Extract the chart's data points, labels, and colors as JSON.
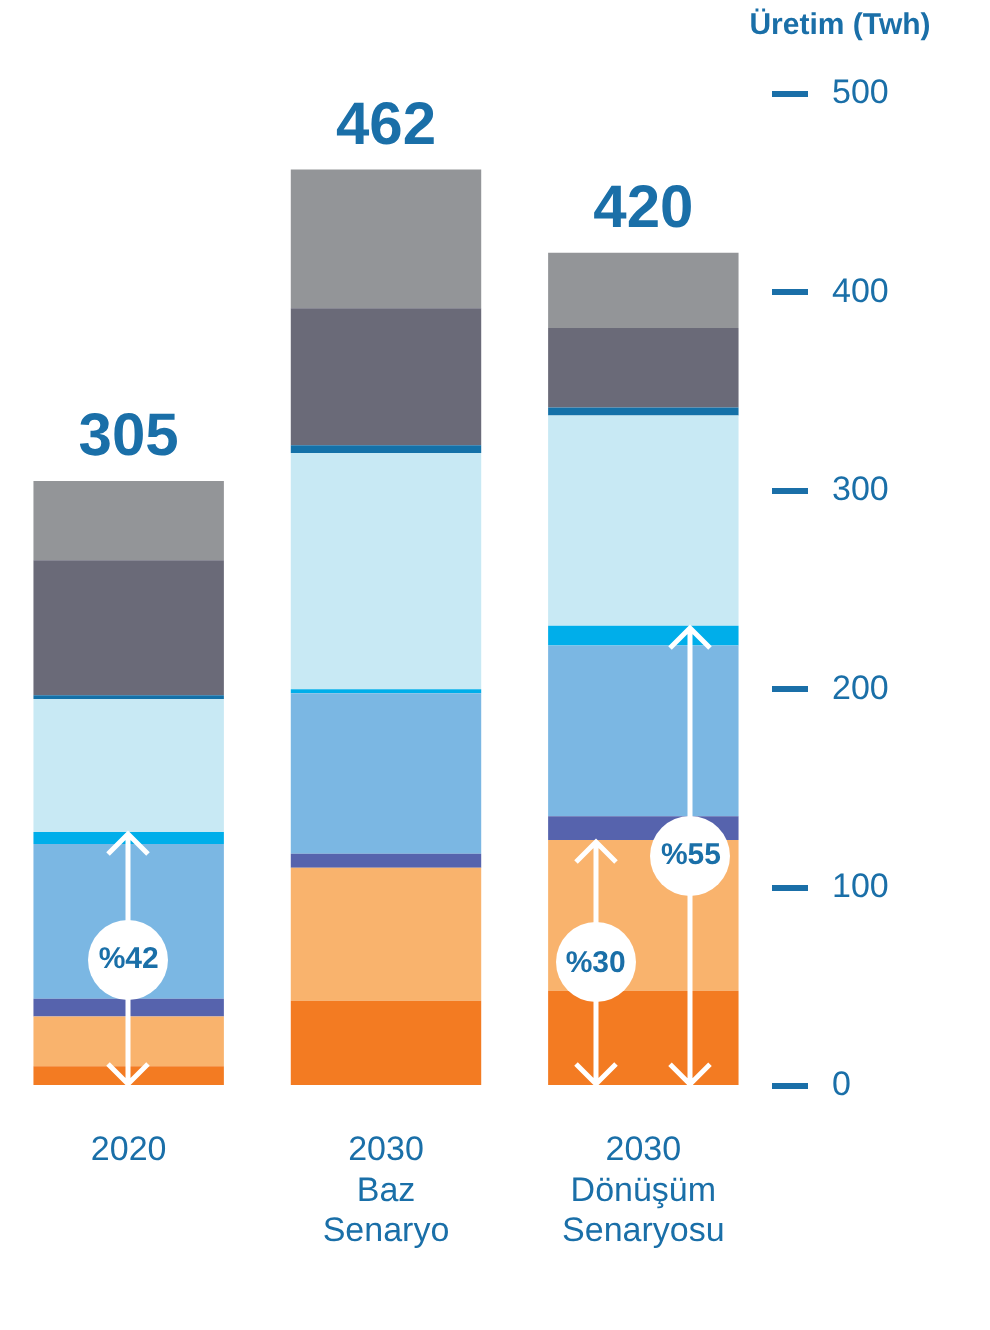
{
  "chart_data": {
    "type": "bar",
    "stacked": true,
    "ylabel": "Üretim (Twh)",
    "categories": [
      "2020",
      "2030\nBaz\nSenaryo",
      "2030\nDönüşüm\nSenaryosu"
    ],
    "series": [
      {
        "color": "#f37b22",
        "values": [
          10,
          43,
          48
        ]
      },
      {
        "color": "#f9b36d",
        "values": [
          25,
          67,
          76
        ]
      },
      {
        "color": "#5663ad",
        "values": [
          9,
          7,
          12
        ]
      },
      {
        "color": "#7bb7e3",
        "values": [
          78,
          81,
          86
        ]
      },
      {
        "color": "#00aeea",
        "values": [
          6,
          2,
          10
        ]
      },
      {
        "color": "#c8e9f4",
        "values": [
          67,
          119,
          106
        ]
      },
      {
        "color": "#1471a8",
        "values": [
          2,
          4,
          4
        ]
      },
      {
        "color": "#6a6a78",
        "values": [
          68,
          69,
          40
        ]
      },
      {
        "color": "#939598",
        "values": [
          40,
          70,
          38
        ]
      }
    ],
    "totals": [
      "305",
      "462",
      "420"
    ],
    "ylim": [
      0,
      500
    ],
    "yticks": [
      0,
      100,
      200,
      300,
      400,
      500
    ],
    "grid": false,
    "legend": false,
    "annotations": [
      "%42",
      "%30",
      "%55"
    ]
  }
}
